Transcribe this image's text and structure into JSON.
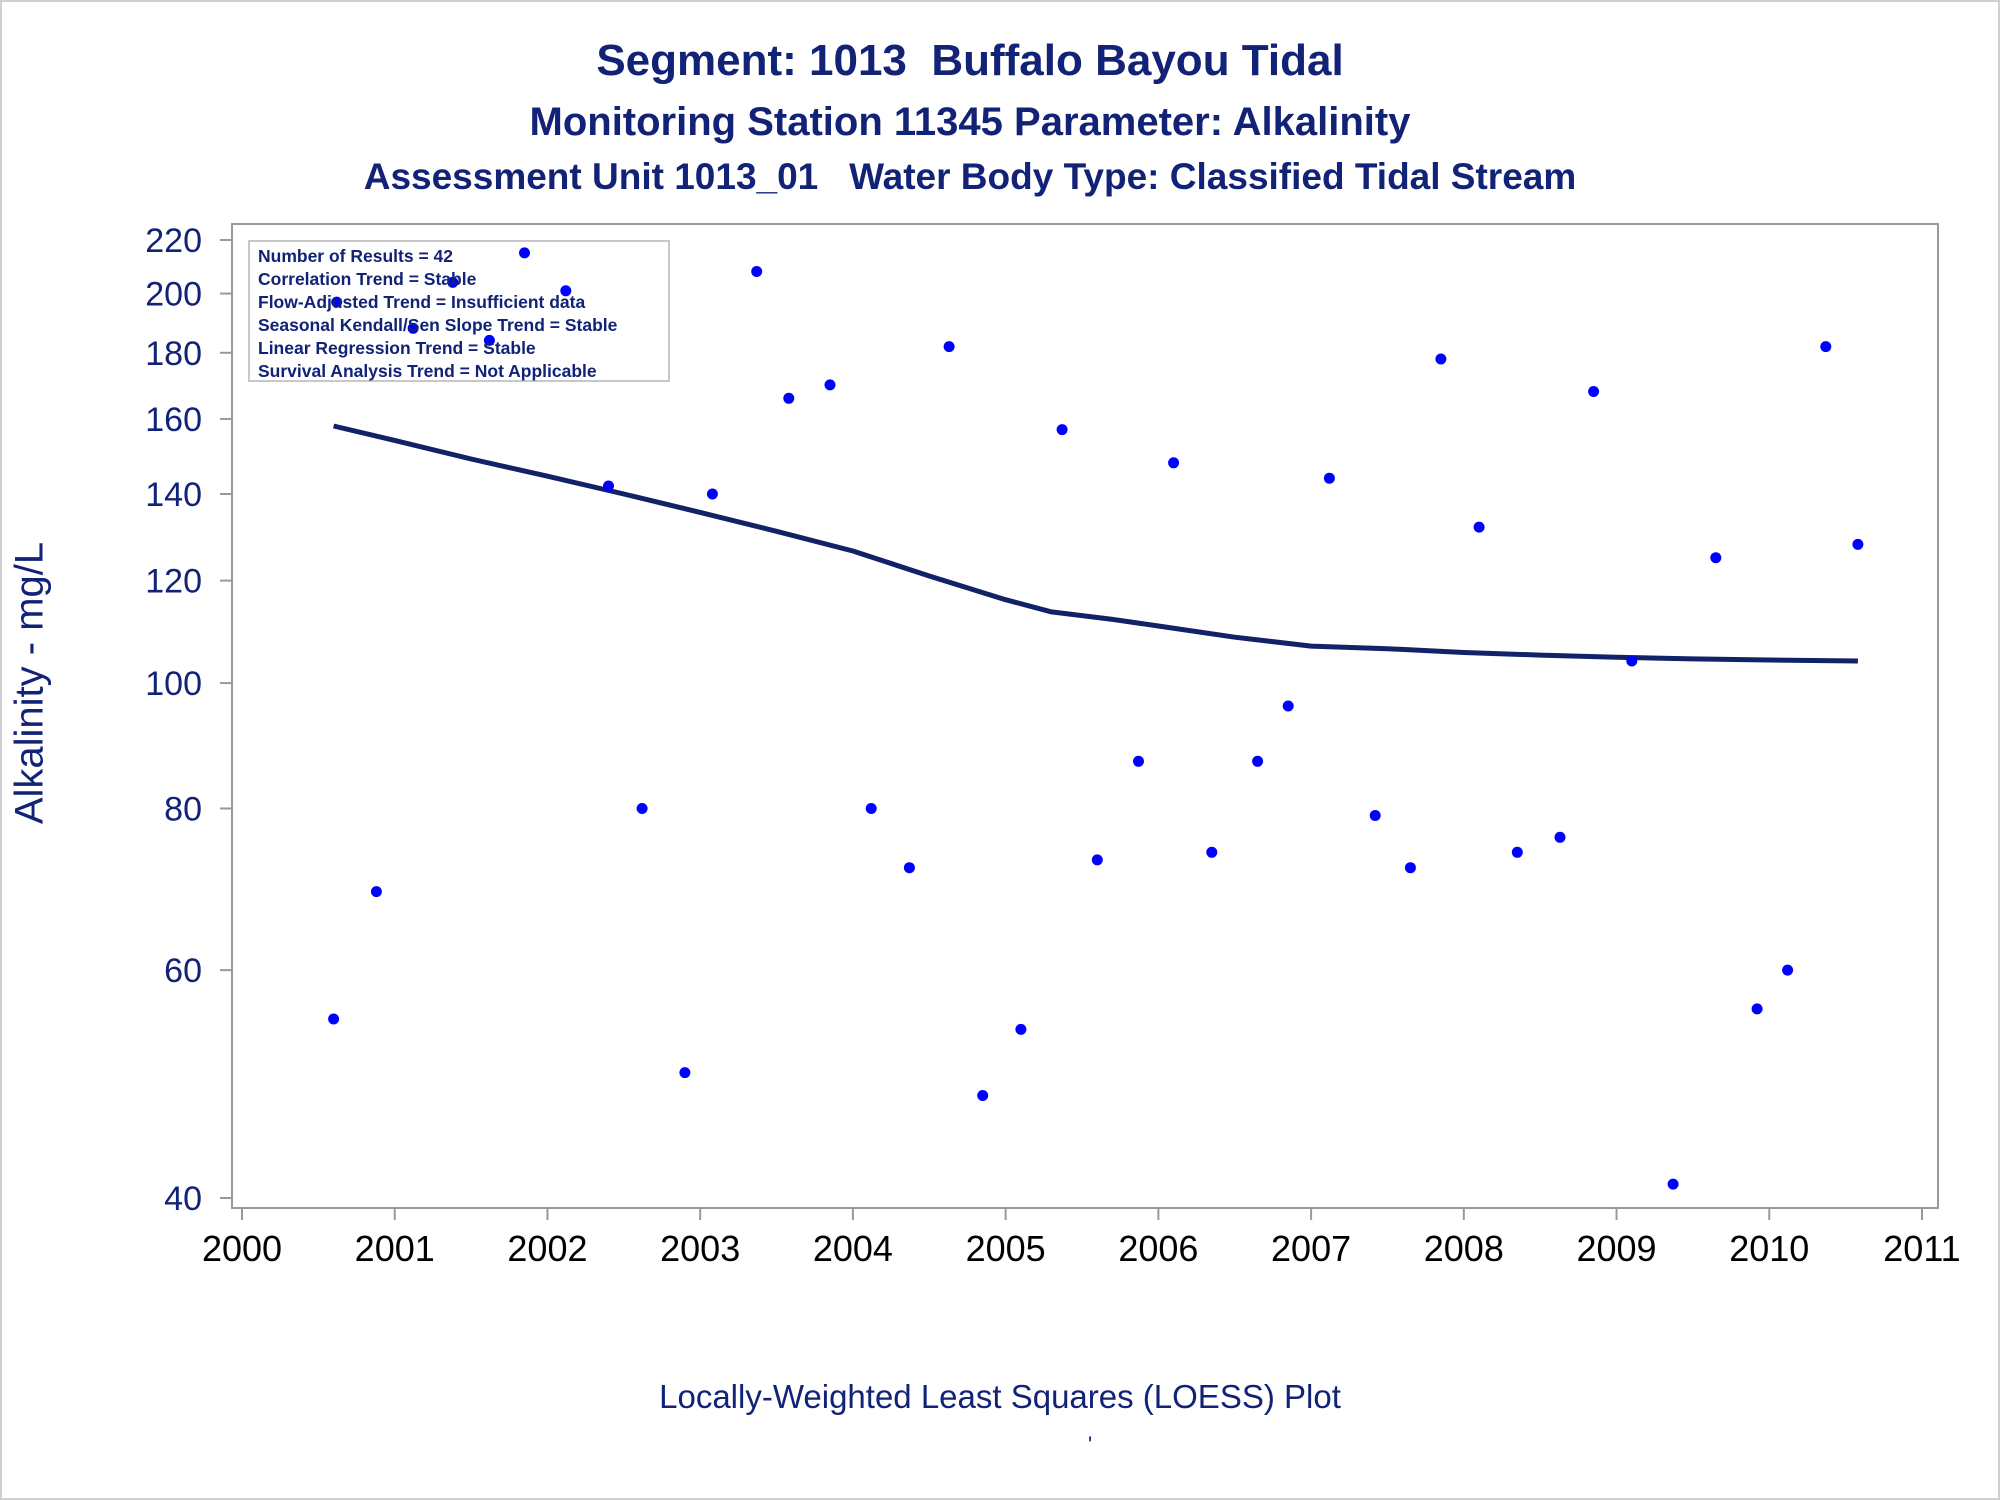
{
  "chart_data": {
    "type": "scatter",
    "title": "Segment: 1013  Buffalo Bayou Tidal",
    "subtitle": "Monitoring Station 11345 Parameter: Alkalinity",
    "subtitle2": "Assessment Unit 1013_01   Water Body Type: Classified Tidal Stream",
    "ylabel": "Alkalinity - mg/L",
    "xlabel": "",
    "footnote": "Locally-Weighted Least Squares (LOESS) Plot",
    "footnote_mark": "'",
    "y_scale": "log",
    "xlim": [
      2000,
      2011
    ],
    "ylim": [
      40,
      220
    ],
    "x_ticks": [
      2000,
      2001,
      2002,
      2003,
      2004,
      2005,
      2006,
      2007,
      2008,
      2009,
      2010,
      2011
    ],
    "y_ticks": [
      40,
      60,
      80,
      100,
      120,
      140,
      160,
      180,
      200,
      220
    ],
    "grid": false,
    "legend_placement": "top-left",
    "legend": [
      "Number of Results = 42",
      "Correlation Trend = Stable",
      "Flow-Adjusted Trend = Insufficient data",
      "Seasonal Kendall/Sen Slope Trend = Stable",
      "Linear Regression Trend = Stable",
      "Survival Analysis Trend = Not Applicable"
    ],
    "colors": {
      "points": "#0000ff",
      "line": "#112266",
      "text": "#112277",
      "axis": "#999999"
    },
    "series": [
      {
        "type": "scatter",
        "points": [
          [
            2000.6,
            55
          ],
          [
            2000.62,
            197
          ],
          [
            2000.88,
            69
          ],
          [
            2001.12,
            188
          ],
          [
            2001.38,
            204
          ],
          [
            2001.62,
            184
          ],
          [
            2001.85,
            215
          ],
          [
            2002.12,
            201
          ],
          [
            2002.4,
            142
          ],
          [
            2002.62,
            80
          ],
          [
            2002.9,
            50
          ],
          [
            2003.08,
            140
          ],
          [
            2003.37,
            208
          ],
          [
            2003.58,
            166
          ],
          [
            2003.85,
            170
          ],
          [
            2004.12,
            80
          ],
          [
            2004.37,
            72
          ],
          [
            2004.63,
            182
          ],
          [
            2004.85,
            48
          ],
          [
            2005.1,
            54
          ],
          [
            2005.37,
            157
          ],
          [
            2005.6,
            73
          ],
          [
            2005.87,
            87
          ],
          [
            2006.1,
            148
          ],
          [
            2006.35,
            74
          ],
          [
            2006.65,
            87
          ],
          [
            2006.85,
            96
          ],
          [
            2007.12,
            144
          ],
          [
            2007.42,
            79
          ],
          [
            2007.65,
            72
          ],
          [
            2007.85,
            178
          ],
          [
            2008.1,
            132
          ],
          [
            2008.35,
            74
          ],
          [
            2008.63,
            76
          ],
          [
            2008.85,
            168
          ],
          [
            2009.1,
            104
          ],
          [
            2009.37,
            41
          ],
          [
            2009.65,
            125
          ],
          [
            2009.92,
            56
          ],
          [
            2010.12,
            60
          ],
          [
            2010.37,
            182
          ],
          [
            2010.58,
            128
          ]
        ]
      },
      {
        "type": "line",
        "points": [
          [
            2000.6,
            158
          ],
          [
            2001.0,
            154
          ],
          [
            2001.5,
            149
          ],
          [
            2002.0,
            144.5
          ],
          [
            2002.5,
            140
          ],
          [
            2003.0,
            135.5
          ],
          [
            2003.5,
            131
          ],
          [
            2004.0,
            126.5
          ],
          [
            2004.5,
            121
          ],
          [
            2005.0,
            116
          ],
          [
            2005.3,
            113.5
          ],
          [
            2005.7,
            112
          ],
          [
            2006.0,
            110.7
          ],
          [
            2006.5,
            108.5
          ],
          [
            2007.0,
            106.8
          ],
          [
            2007.5,
            106.3
          ],
          [
            2008.0,
            105.6
          ],
          [
            2008.5,
            105.1
          ],
          [
            2009.0,
            104.7
          ],
          [
            2009.5,
            104.4
          ],
          [
            2010.0,
            104.2
          ],
          [
            2010.58,
            104.0
          ]
        ]
      }
    ]
  }
}
